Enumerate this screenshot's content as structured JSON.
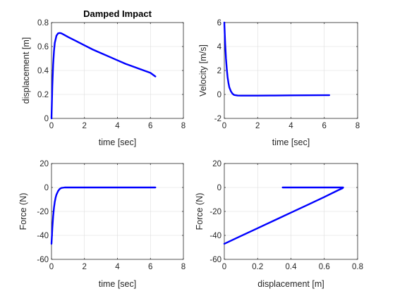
{
  "figure": {
    "background": "#ffffff",
    "line_color": "#0000ff"
  },
  "chart_data": [
    {
      "type": "line",
      "title": "Damped Impact",
      "xlabel": "time [sec]",
      "ylabel": "displacement [m]",
      "xlim": [
        0,
        8
      ],
      "ylim": [
        0,
        0.8
      ],
      "xticks": [
        "0",
        "2",
        "4",
        "6",
        "8"
      ],
      "yticks": [
        "0",
        "0.2",
        "0.4",
        "0.6",
        "0.8"
      ],
      "grid": true,
      "series": [
        {
          "x": [
            0,
            0.05,
            0.1,
            0.15,
            0.2,
            0.3,
            0.4,
            0.5,
            0.6,
            0.8,
            1.0,
            1.5,
            2.0,
            2.5,
            3.0,
            3.5,
            4.0,
            4.5,
            5.0,
            5.5,
            6.0,
            6.3
          ],
          "y": [
            0,
            0.27,
            0.45,
            0.56,
            0.63,
            0.69,
            0.71,
            0.713,
            0.71,
            0.695,
            0.68,
            0.645,
            0.61,
            0.575,
            0.545,
            0.515,
            0.485,
            0.455,
            0.43,
            0.405,
            0.38,
            0.35
          ]
        }
      ]
    },
    {
      "type": "line",
      "title": "",
      "xlabel": "time [sec]",
      "ylabel": "Velocity [m/s]",
      "xlim": [
        0,
        8
      ],
      "ylim": [
        -2,
        6
      ],
      "xticks": [
        "0",
        "2",
        "4",
        "6",
        "8"
      ],
      "yticks": [
        "-2",
        "0",
        "2",
        "4",
        "6"
      ],
      "grid": true,
      "series": [
        {
          "x": [
            0,
            0.05,
            0.1,
            0.15,
            0.2,
            0.25,
            0.3,
            0.4,
            0.5,
            0.6,
            0.8,
            1.0,
            2.0,
            3.0,
            4.0,
            5.0,
            6.0,
            6.3
          ],
          "y": [
            6,
            4.3,
            3.0,
            2.1,
            1.4,
            0.95,
            0.6,
            0.25,
            0.05,
            -0.05,
            -0.09,
            -0.1,
            -0.1,
            -0.09,
            -0.08,
            -0.07,
            -0.06,
            -0.06
          ]
        }
      ]
    },
    {
      "type": "line",
      "title": "",
      "xlabel": "time [sec]",
      "ylabel": "Force (N)",
      "xlim": [
        0,
        8
      ],
      "ylim": [
        -60,
        20
      ],
      "xticks": [
        "0",
        "2",
        "4",
        "6",
        "8"
      ],
      "yticks": [
        "-60",
        "-40",
        "-20",
        "0",
        "20"
      ],
      "grid": true,
      "series": [
        {
          "x": [
            0,
            0.05,
            0.1,
            0.15,
            0.2,
            0.25,
            0.3,
            0.4,
            0.5,
            0.6,
            0.8,
            1.0,
            2.0,
            3.0,
            4.0,
            5.0,
            6.0,
            6.3
          ],
          "y": [
            -47,
            -34,
            -24,
            -17,
            -12,
            -8.5,
            -6,
            -3,
            -1.2,
            -0.4,
            0,
            0,
            0,
            0,
            0,
            0,
            0,
            0
          ]
        }
      ]
    },
    {
      "type": "line",
      "title": "",
      "xlabel": "displacement [m]",
      "ylabel": "Force (N)",
      "xlim": [
        0,
        0.8
      ],
      "ylim": [
        -60,
        20
      ],
      "xticks": [
        "0",
        "0.2",
        "0.4",
        "0.6",
        "0.8"
      ],
      "yticks": [
        "-60",
        "-40",
        "-20",
        "0",
        "20"
      ],
      "grid": true,
      "series": [
        {
          "x": [
            0,
            0.1,
            0.2,
            0.3,
            0.4,
            0.5,
            0.6,
            0.68,
            0.71,
            0.713,
            0.7,
            0.6,
            0.5,
            0.4,
            0.35
          ],
          "y": [
            -47,
            -40.5,
            -34,
            -27.5,
            -21,
            -14.5,
            -8,
            -2.5,
            -0.6,
            0,
            0,
            0,
            0,
            0,
            0
          ]
        }
      ]
    }
  ]
}
